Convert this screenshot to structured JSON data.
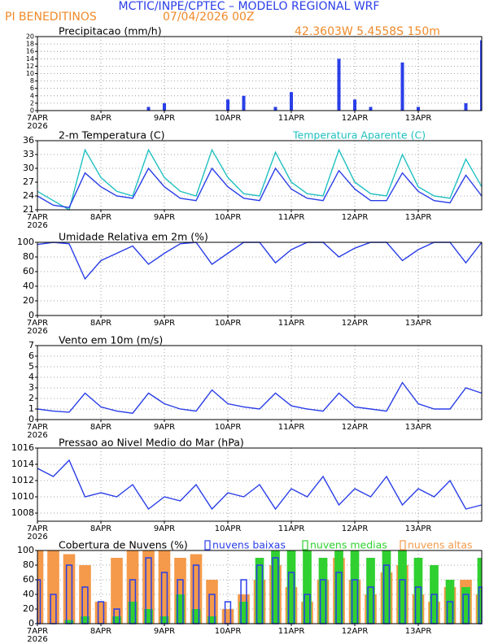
{
  "header": {
    "title": "MCTIC/INPE/CPTEC – MODELO REGIONAL WRF",
    "location": "PI BENEDITINOS",
    "date": "07/04/2026 00Z",
    "coords": "42.3603W 5.4558S 150m"
  },
  "chart_data": [
    {
      "type": "bar",
      "title": "Precipitacao (mm/h)",
      "x": [
        0,
        6,
        12,
        18,
        24,
        30,
        36,
        42,
        48,
        54,
        60,
        66,
        72,
        78,
        84,
        90,
        96,
        102,
        108,
        114,
        120,
        126,
        132,
        138,
        144,
        150,
        156,
        162,
        168
      ],
      "xlim": [
        0,
        168
      ],
      "xticks": [
        {
          "value": 0,
          "label": "7APR"
        },
        {
          "value": 24,
          "label": "8APR"
        },
        {
          "value": 48,
          "label": "9APR"
        },
        {
          "value": 72,
          "label": "10APR"
        },
        {
          "value": 96,
          "label": "11APR"
        },
        {
          "value": 120,
          "label": "12APR"
        },
        {
          "value": 144,
          "label": "13APR"
        }
      ],
      "x_year": "2026",
      "ylim": [
        0,
        20
      ],
      "yticks": [
        0,
        2,
        4,
        6,
        8,
        10,
        12,
        14,
        16,
        18,
        20
      ],
      "grid": true,
      "series": [
        {
          "color": "#2a3ee8",
          "values": [
            0,
            0,
            0,
            0,
            0,
            0,
            0,
            1,
            2,
            0,
            0,
            0,
            3,
            4,
            0,
            1,
            5,
            0,
            0,
            14,
            3,
            1,
            0,
            13,
            1,
            0,
            0,
            2,
            19
          ]
        }
      ]
    },
    {
      "type": "line",
      "title": "2-m Temperatura (C)",
      "x": [
        0,
        6,
        12,
        18,
        24,
        30,
        36,
        42,
        48,
        54,
        60,
        66,
        72,
        78,
        84,
        90,
        96,
        102,
        108,
        114,
        120,
        126,
        132,
        138,
        144,
        150,
        156,
        162,
        168
      ],
      "xlim": [
        0,
        168
      ],
      "xticks": [
        {
          "value": 0,
          "label": "7APR"
        },
        {
          "value": 24,
          "label": "8APR"
        },
        {
          "value": 48,
          "label": "9APR"
        },
        {
          "value": 72,
          "label": "10APR"
        },
        {
          "value": 96,
          "label": "11APR"
        },
        {
          "value": 120,
          "label": "12APR"
        },
        {
          "value": 144,
          "label": "13APR"
        }
      ],
      "x_year": "2026",
      "ylim": [
        21,
        36
      ],
      "yticks": [
        21,
        24,
        27,
        30,
        33,
        36
      ],
      "grid": true,
      "series": [
        {
          "name": "Temperatura Aparente (C)",
          "color": "#20c0c0",
          "values": [
            25,
            23,
            21,
            34,
            28,
            25,
            24,
            34,
            28,
            25,
            24,
            34,
            28,
            24.5,
            24,
            33.5,
            27,
            24.5,
            24,
            34,
            27,
            24.5,
            24,
            33,
            26,
            24,
            23.5,
            32,
            26
          ]
        },
        {
          "color": "#2a3ee8",
          "values": [
            24,
            22,
            21.5,
            29,
            26,
            24,
            23.5,
            30,
            26,
            23.5,
            23,
            30,
            26,
            23.5,
            23,
            30,
            25.5,
            23.5,
            23,
            29.5,
            25.5,
            23,
            23,
            29,
            25,
            23,
            22.5,
            28.5,
            24
          ]
        }
      ]
    },
    {
      "type": "line",
      "title": "Umidade Relativa em 2m (%)",
      "x": [
        0,
        6,
        12,
        18,
        24,
        30,
        36,
        42,
        48,
        54,
        60,
        66,
        72,
        78,
        84,
        90,
        96,
        102,
        108,
        114,
        120,
        126,
        132,
        138,
        144,
        150,
        156,
        162,
        168
      ],
      "xlim": [
        0,
        168
      ],
      "xticks": [
        {
          "value": 0,
          "label": "7APR"
        },
        {
          "value": 24,
          "label": "8APR"
        },
        {
          "value": 48,
          "label": "9APR"
        },
        {
          "value": 72,
          "label": "10APR"
        },
        {
          "value": 96,
          "label": "11APR"
        },
        {
          "value": 120,
          "label": "12APR"
        },
        {
          "value": 144,
          "label": "13APR"
        }
      ],
      "x_year": "2026",
      "ylim": [
        0,
        100
      ],
      "yticks": [
        0,
        20,
        40,
        60,
        80,
        100
      ],
      "grid": true,
      "series": [
        {
          "color": "#2a3ee8",
          "values": [
            97,
            100,
            98,
            50,
            75,
            85,
            95,
            70,
            85,
            98,
            100,
            70,
            85,
            100,
            100,
            72,
            90,
            100,
            100,
            80,
            92,
            100,
            100,
            75,
            90,
            100,
            100,
            72,
            100
          ]
        }
      ]
    },
    {
      "type": "line",
      "title": "Vento em 10m (m/s)",
      "x": [
        0,
        6,
        12,
        18,
        24,
        30,
        36,
        42,
        48,
        54,
        60,
        66,
        72,
        78,
        84,
        90,
        96,
        102,
        108,
        114,
        120,
        126,
        132,
        138,
        144,
        150,
        156,
        162,
        168
      ],
      "xlim": [
        0,
        168
      ],
      "xticks": [
        {
          "value": 0,
          "label": "7APR"
        },
        {
          "value": 24,
          "label": "8APR"
        },
        {
          "value": 48,
          "label": "9APR"
        },
        {
          "value": 72,
          "label": "10APR"
        },
        {
          "value": 96,
          "label": "11APR"
        },
        {
          "value": 120,
          "label": "12APR"
        },
        {
          "value": 144,
          "label": "13APR"
        }
      ],
      "x_year": "2026",
      "ylim": [
        0,
        7
      ],
      "yticks": [
        0,
        1,
        2,
        3,
        4,
        5,
        6,
        7
      ],
      "grid": true,
      "series": [
        {
          "color": "#2a3ee8",
          "values": [
            1,
            0.8,
            0.7,
            2.5,
            1.2,
            0.8,
            0.6,
            2.5,
            1.5,
            1,
            0.8,
            2.8,
            1.5,
            1.2,
            1,
            2.5,
            1.3,
            1,
            0.8,
            2.5,
            1.2,
            1,
            0.8,
            3.5,
            1.5,
            1,
            1,
            3,
            2.5
          ]
        }
      ]
    },
    {
      "type": "line",
      "title": "Pressao ao Nivel Medio do Mar (hPa)",
      "x": [
        0,
        6,
        12,
        18,
        24,
        30,
        36,
        42,
        48,
        54,
        60,
        66,
        72,
        78,
        84,
        90,
        96,
        102,
        108,
        114,
        120,
        126,
        132,
        138,
        144,
        150,
        156,
        162,
        168
      ],
      "xlim": [
        0,
        168
      ],
      "xticks": [
        {
          "value": 0,
          "label": "7APR"
        },
        {
          "value": 24,
          "label": "8APR"
        },
        {
          "value": 48,
          "label": "9APR"
        },
        {
          "value": 72,
          "label": "10APR"
        },
        {
          "value": 96,
          "label": "11APR"
        },
        {
          "value": 120,
          "label": "12APR"
        },
        {
          "value": 144,
          "label": "13APR"
        }
      ],
      "x_year": "2026",
      "ylim": [
        1007,
        1016
      ],
      "yticks": [
        1008,
        1010,
        1012,
        1014,
        1016
      ],
      "grid": true,
      "series": [
        {
          "color": "#2a3ee8",
          "values": [
            1013.5,
            1012.5,
            1014.5,
            1010,
            1010.5,
            1010,
            1011.5,
            1008.5,
            1010,
            1009.5,
            1011.5,
            1008.5,
            1010.5,
            1010,
            1011.5,
            1008.5,
            1011,
            1010,
            1012.5,
            1009,
            1011,
            1010,
            1012.5,
            1009,
            1011,
            1010,
            1012,
            1008.5,
            1009
          ]
        }
      ]
    },
    {
      "type": "bar",
      "title": "Cobertura de Nuvens (%)",
      "x": [
        0,
        6,
        12,
        18,
        24,
        30,
        36,
        42,
        48,
        54,
        60,
        66,
        72,
        78,
        84,
        90,
        96,
        102,
        108,
        114,
        120,
        126,
        132,
        138,
        144,
        150,
        156,
        162,
        168
      ],
      "xlim": [
        0,
        168
      ],
      "xticks": [
        {
          "value": 0,
          "label": "7APR"
        },
        {
          "value": 24,
          "label": "8APR"
        },
        {
          "value": 48,
          "label": "9APR"
        },
        {
          "value": 72,
          "label": "10APR"
        },
        {
          "value": 96,
          "label": "11APR"
        },
        {
          "value": 120,
          "label": "12APR"
        },
        {
          "value": 144,
          "label": "13APR"
        }
      ],
      "x_year": "2026",
      "ylim": [
        0,
        100
      ],
      "yticks": [
        0,
        20,
        40,
        60,
        80,
        100
      ],
      "grid": true,
      "series": [
        {
          "name": "nuvens baixas",
          "color": "#2a3ee8",
          "values": [
            60,
            40,
            80,
            50,
            30,
            20,
            60,
            90,
            70,
            60,
            80,
            40,
            30,
            60,
            80,
            90,
            70,
            40,
            60,
            70,
            60,
            50,
            80,
            60,
            50,
            40,
            30,
            40,
            50
          ]
        },
        {
          "name": "nuvens medias",
          "color": "#30d030",
          "values": [
            0,
            0,
            5,
            10,
            0,
            10,
            30,
            20,
            10,
            40,
            20,
            10,
            0,
            30,
            90,
            100,
            100,
            100,
            90,
            100,
            100,
            90,
            100,
            100,
            90,
            80,
            60,
            50,
            90
          ]
        },
        {
          "name": "nuvens altas",
          "color": "#f49a4a",
          "values": [
            100,
            100,
            95,
            80,
            30,
            90,
            100,
            100,
            100,
            90,
            95,
            60,
            20,
            40,
            60,
            80,
            50,
            30,
            60,
            90,
            60,
            40,
            70,
            80,
            40,
            30,
            50,
            60,
            40
          ]
        }
      ]
    }
  ]
}
